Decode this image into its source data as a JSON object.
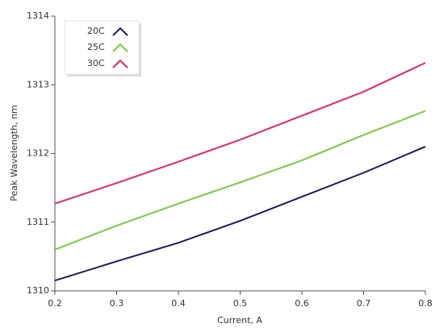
{
  "chart_data": {
    "type": "line",
    "x_label": "Current, A",
    "y_label": "Peak Wavelength, nm",
    "x": [
      0.2,
      0.3,
      0.4,
      0.5,
      0.6,
      0.7,
      0.8
    ],
    "series": [
      {
        "name": "20C",
        "color": "#1b1a5c",
        "values": [
          1310.15,
          1310.43,
          1310.7,
          1311.02,
          1311.37,
          1311.72,
          1312.1
        ]
      },
      {
        "name": "25C",
        "color": "#7ac943",
        "values": [
          1310.6,
          1310.95,
          1311.27,
          1311.58,
          1311.9,
          1312.27,
          1312.62
        ]
      },
      {
        "name": "30C",
        "color": "#e0266e",
        "values": [
          1311.27,
          1311.57,
          1311.88,
          1312.2,
          1312.55,
          1312.9,
          1313.32
        ]
      }
    ],
    "xlim": [
      0.2,
      0.8
    ],
    "xticks": [
      0.2,
      0.3,
      0.4,
      0.5,
      0.6,
      0.7,
      0.8
    ],
    "ylim": [
      1310,
      1314
    ],
    "yticks": [
      1310,
      1311,
      1312,
      1313,
      1314
    ],
    "legend": "top-left"
  }
}
